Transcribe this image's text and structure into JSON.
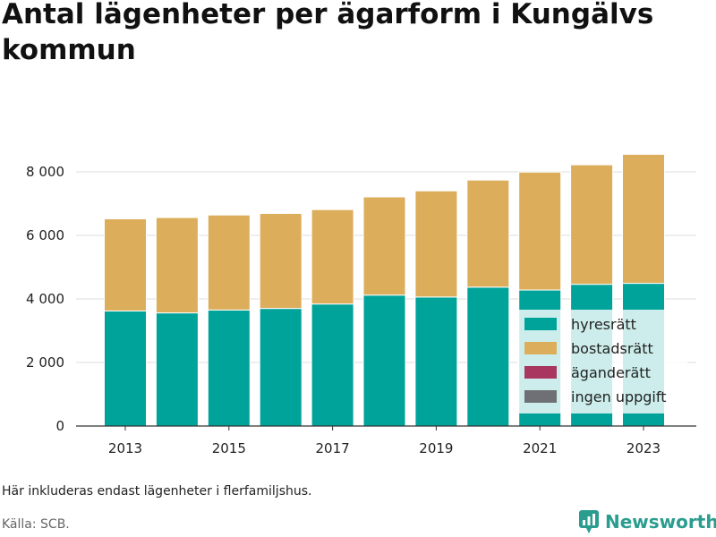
{
  "title": "Antal lägenheter per ägarform i Kungälvs kommun",
  "note": "Här inkluderas endast lägenheter i flerfamiljshus.",
  "source": "Källa: SCB.",
  "brand": "Newsworthy",
  "colors": {
    "hyresratt": "#00a39a",
    "bostadsratt": "#dcae5c",
    "aganderatt": "#a8365e",
    "ingen_uppgift": "#6e7075",
    "brand": "#2a9d8f"
  },
  "chart_data": {
    "type": "bar",
    "stacked": true,
    "categories": [
      2013,
      2014,
      2015,
      2016,
      2017,
      2018,
      2019,
      2020,
      2021,
      2022,
      2023
    ],
    "x_tick_labels": [
      "2013",
      "2015",
      "2017",
      "2019",
      "2021",
      "2023"
    ],
    "y_ticks": [
      0,
      2000,
      4000,
      6000,
      8000
    ],
    "y_tick_labels": [
      "0",
      "2 000",
      "4 000",
      "6 000",
      "8 000"
    ],
    "ylim": [
      0,
      8900
    ],
    "grid": true,
    "legend_position": "bottom-right",
    "series": [
      {
        "name": "hyresrätt",
        "values": [
          3620,
          3560,
          3650,
          3700,
          3840,
          4120,
          4060,
          4370,
          4280,
          4460,
          4490
        ]
      },
      {
        "name": "bostadsrätt",
        "values": [
          2900,
          3000,
          2990,
          2990,
          2970,
          3090,
          3340,
          3370,
          3710,
          3760,
          4060
        ]
      },
      {
        "name": "äganderätt",
        "values": [
          0,
          0,
          0,
          0,
          0,
          0,
          0,
          0,
          0,
          0,
          0
        ]
      },
      {
        "name": "ingen uppgift",
        "values": [
          0,
          0,
          0,
          0,
          0,
          0,
          0,
          0,
          0,
          0,
          0
        ]
      }
    ]
  }
}
